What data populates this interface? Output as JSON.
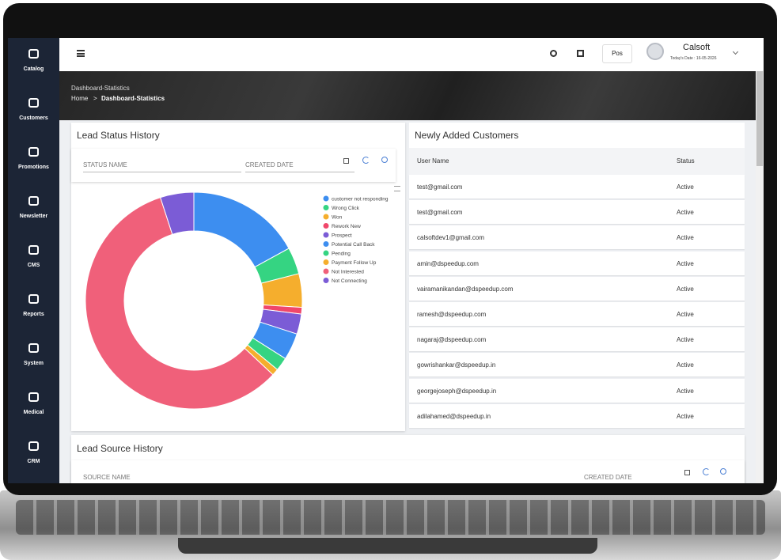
{
  "sidebar": [
    {
      "label": "Catalog"
    },
    {
      "label": "Customers"
    },
    {
      "label": "Promotions"
    },
    {
      "label": "Newsletter"
    },
    {
      "label": "CMS"
    },
    {
      "label": "Reports"
    },
    {
      "label": "System"
    },
    {
      "label": "Medical"
    },
    {
      "label": "CRM"
    }
  ],
  "topbar": {
    "pos_button": "Pos",
    "user_name": "Calsoft",
    "date": "Today's Date : 16-05-2026"
  },
  "banner": {
    "title": "Dashboard-Statistics",
    "breadcrumb_home": "Home",
    "breadcrumb_separator": ">",
    "breadcrumb_current": "Dashboard-Statistics"
  },
  "lead_status": {
    "title": "Lead Status History",
    "filter_status": "STATUS NAME",
    "filter_date": "CREATED DATE"
  },
  "chart_data": {
    "type": "pie",
    "donut": true,
    "categories": [
      "customer not responding",
      "Wrong Click",
      "Won",
      "Rework New",
      "Prospect",
      "Potential Call Back",
      "Pending",
      "Payment Follow Up",
      "Not Interested",
      "Not Connecting"
    ],
    "values": [
      17,
      4,
      5,
      1,
      3,
      4,
      2,
      1,
      58,
      5
    ],
    "colors": [
      "#3d8ef0",
      "#35d482",
      "#f5ae2d",
      "#f0476b",
      "#7b5cd6",
      "#3d8ef0",
      "#35d482",
      "#f5ae2d",
      "#f0607a",
      "#7b5cd6"
    ]
  },
  "customers": {
    "title": "Newly Added Customers",
    "columns": [
      "User Name",
      "Status"
    ],
    "rows": [
      [
        "test@gmail.com",
        "Active"
      ],
      [
        "test@gmail.com",
        "Active"
      ],
      [
        "calsoftdev1@gmail.com",
        "Active"
      ],
      [
        "amin@dspeedup.com",
        "Active"
      ],
      [
        "vairamanikandan@dspeedup.com",
        "Active"
      ],
      [
        "ramesh@dspeedup.com",
        "Active"
      ],
      [
        "nagaraj@dspeedup.com",
        "Active"
      ],
      [
        "gowrishankar@dspeedup.in",
        "Active"
      ],
      [
        "georgejoseph@dspeedup.in",
        "Active"
      ],
      [
        "adilahamed@dspeedup.in",
        "Active"
      ]
    ]
  },
  "lead_source": {
    "title": "Lead Source History",
    "filter_source": "SOURCE NAME",
    "filter_date": "CREATED DATE"
  }
}
